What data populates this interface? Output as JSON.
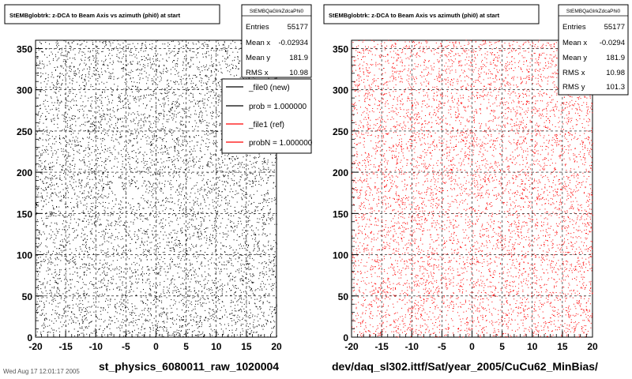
{
  "left_panel": {
    "title": "StEMBglobtrk: z-DCA to Beam Axis vs azimuth (phi0) at start",
    "caption": "st_physics_6080011_raw_1020004",
    "stats": {
      "name": "StEMBQaGlrkZdcaPhi0",
      "rows": [
        {
          "label": "Entries",
          "value": "55177"
        },
        {
          "label": "Mean x",
          "value": "-0.02934"
        },
        {
          "label": "Mean y",
          "value": "181.9"
        },
        {
          "label": "RMS x",
          "value": "10.98"
        }
      ]
    },
    "legend": {
      "entries": [
        {
          "text": "_file0 (new)",
          "color": "#000000"
        },
        {
          "text": "prob = 1.000000",
          "color": "#000000"
        },
        {
          "text": "_file1 (ref)",
          "color": "#ff0000"
        },
        {
          "text": "probN = 1.000000",
          "color": "#ff0000"
        }
      ]
    },
    "point_color": "#000000"
  },
  "right_panel": {
    "title": "StEMBglobtrk: z-DCA to Beam Axis vs azimuth (phi0) at start",
    "caption": "dev/daq_sl302.ittf/Sat/year_2005/CuCu62_MinBias/",
    "stats": {
      "name": "StEMBQaGlrkZdcaPhi0",
      "rows": [
        {
          "label": "Entries",
          "value": "55177"
        },
        {
          "label": "Mean x",
          "value": "-0.0294"
        },
        {
          "label": "Mean y",
          "value": "181.9"
        },
        {
          "label": "RMS x",
          "value": "10.98"
        },
        {
          "label": "RMS y",
          "value": "101.3"
        }
      ]
    },
    "point_color": "#ff0000"
  },
  "footer_stamp": "Wed Aug 17 12:01:17 2005",
  "chart_data": [
    {
      "type": "scatter",
      "title": "StEMBglobtrk: z-DCA to Beam Axis vs azimuth (phi0) at start",
      "xlim": [
        -20,
        20
      ],
      "ylim": [
        0,
        360
      ],
      "xticks": [
        -20,
        -15,
        -10,
        -5,
        0,
        5,
        10,
        15,
        20
      ],
      "yticks": [
        0,
        50,
        100,
        150,
        200,
        250,
        300,
        350
      ],
      "grid": true,
      "legend_position": "top-right",
      "series": [
        {
          "name": "_file0 (new)",
          "color": "#000000",
          "entries": 55177,
          "mean_x": -0.02934,
          "mean_y": 181.9,
          "rms_x": 10.98
        }
      ]
    },
    {
      "type": "scatter",
      "title": "StEMBglobtrk: z-DCA to Beam Axis vs azimuth (phi0) at start",
      "xlim": [
        -20,
        20
      ],
      "ylim": [
        0,
        360
      ],
      "xticks": [
        -20,
        -15,
        -10,
        -5,
        0,
        5,
        10,
        15,
        20
      ],
      "yticks": [
        0,
        50,
        100,
        150,
        200,
        250,
        300,
        350
      ],
      "grid": true,
      "series": [
        {
          "name": "_file1 (ref)",
          "color": "#ff0000",
          "entries": 55177,
          "mean_x": -0.0294,
          "mean_y": 181.9,
          "rms_x": 10.98,
          "rms_y": 101.3
        }
      ]
    }
  ]
}
